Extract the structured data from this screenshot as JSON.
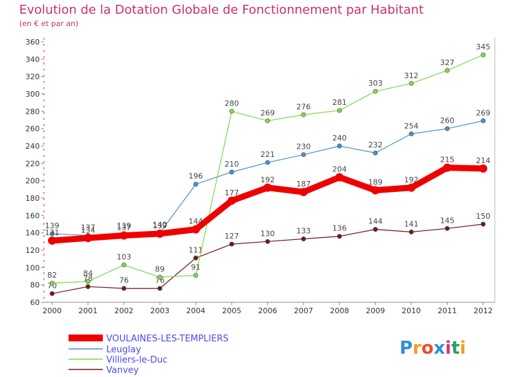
{
  "chart_data": {
    "type": "line",
    "title": "Evolution de la Dotation Globale de Fonctionnement par Habitant",
    "subtitle": "(en € et par an)",
    "x": [
      2000,
      2001,
      2002,
      2003,
      2004,
      2005,
      2006,
      2007,
      2008,
      2009,
      2010,
      2011,
      2012
    ],
    "ylim": [
      60,
      360
    ],
    "yticks": [
      60,
      80,
      100,
      120,
      140,
      160,
      180,
      200,
      220,
      240,
      260,
      280,
      300,
      320,
      340,
      360
    ],
    "grid": false,
    "legend": "bottom-left",
    "series": [
      {
        "name": "VOULAINES-LES-TEMPLIERS",
        "color": "#ee0000",
        "values": [
          131,
          134,
          137,
          139,
          144,
          177,
          192,
          187,
          204,
          189,
          192,
          215,
          214
        ]
      },
      {
        "name": "Leuglay",
        "color": "#4a90cc",
        "values": [
          139,
          137,
          139,
          140,
          196,
          210,
          221,
          230,
          240,
          232,
          254,
          260,
          269
        ]
      },
      {
        "name": "Villiers-le-Duc",
        "color": "#7fd94a",
        "values": [
          82,
          84,
          103,
          89,
          91,
          280,
          269,
          276,
          281,
          303,
          312,
          327,
          345
        ]
      },
      {
        "name": "Vanvey",
        "color": "#6e1a1a",
        "values": [
          70,
          78,
          76,
          76,
          111,
          127,
          130,
          133,
          136,
          144,
          141,
          145,
          150
        ]
      }
    ]
  },
  "logo": {
    "text": "Proxiti",
    "colors": [
      "#2e8fd6",
      "#f0a020",
      "#e8502a",
      "#2e8fd6",
      "#e03070",
      "#2ea060",
      "#f0a020"
    ]
  }
}
